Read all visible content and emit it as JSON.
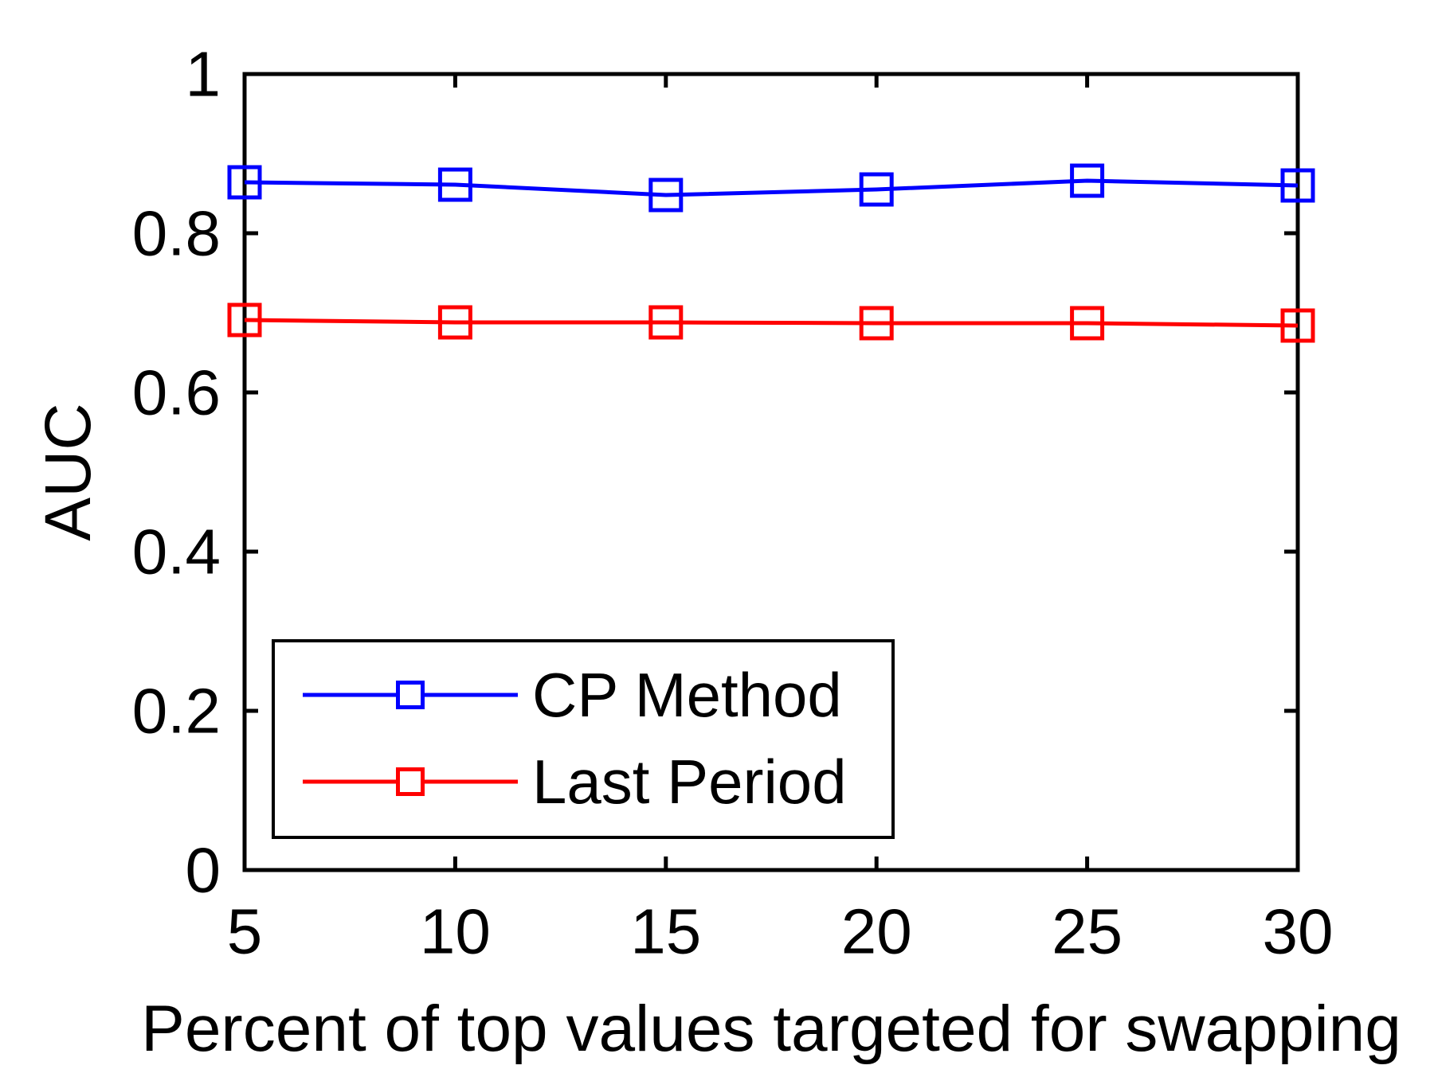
{
  "figure": {
    "background": "#ffffff",
    "text_color": "#000000",
    "axis_color": "#000000"
  },
  "chart_data": {
    "type": "line",
    "title": "",
    "xlabel": "Percent of top values targeted for swapping",
    "ylabel": "AUC",
    "x": [
      5,
      10,
      15,
      20,
      25,
      30
    ],
    "series": [
      {
        "name": "CP Method",
        "color": "#0000ff",
        "marker": "open-square",
        "values": [
          0.864,
          0.861,
          0.848,
          0.855,
          0.866,
          0.86
        ]
      },
      {
        "name": "Last Period",
        "color": "#ff0000",
        "marker": "open-square",
        "values": [
          0.691,
          0.688,
          0.688,
          0.687,
          0.687,
          0.684
        ]
      }
    ],
    "xlim": [
      5,
      30
    ],
    "ylim": [
      0,
      1
    ],
    "xticks": {
      "values": [
        5,
        10,
        15,
        20,
        25,
        30
      ],
      "labels": [
        "5",
        "10",
        "15",
        "20",
        "25",
        "30"
      ]
    },
    "yticks": {
      "values": [
        0,
        0.2,
        0.4,
        0.6,
        0.8,
        1
      ],
      "labels": [
        "0",
        "0.2",
        "0.4",
        "0.6",
        "0.8",
        "1"
      ]
    },
    "grid": false,
    "legend": {
      "position": "lower-left-inside",
      "entries": [
        "CP Method",
        "Last Period"
      ]
    }
  }
}
